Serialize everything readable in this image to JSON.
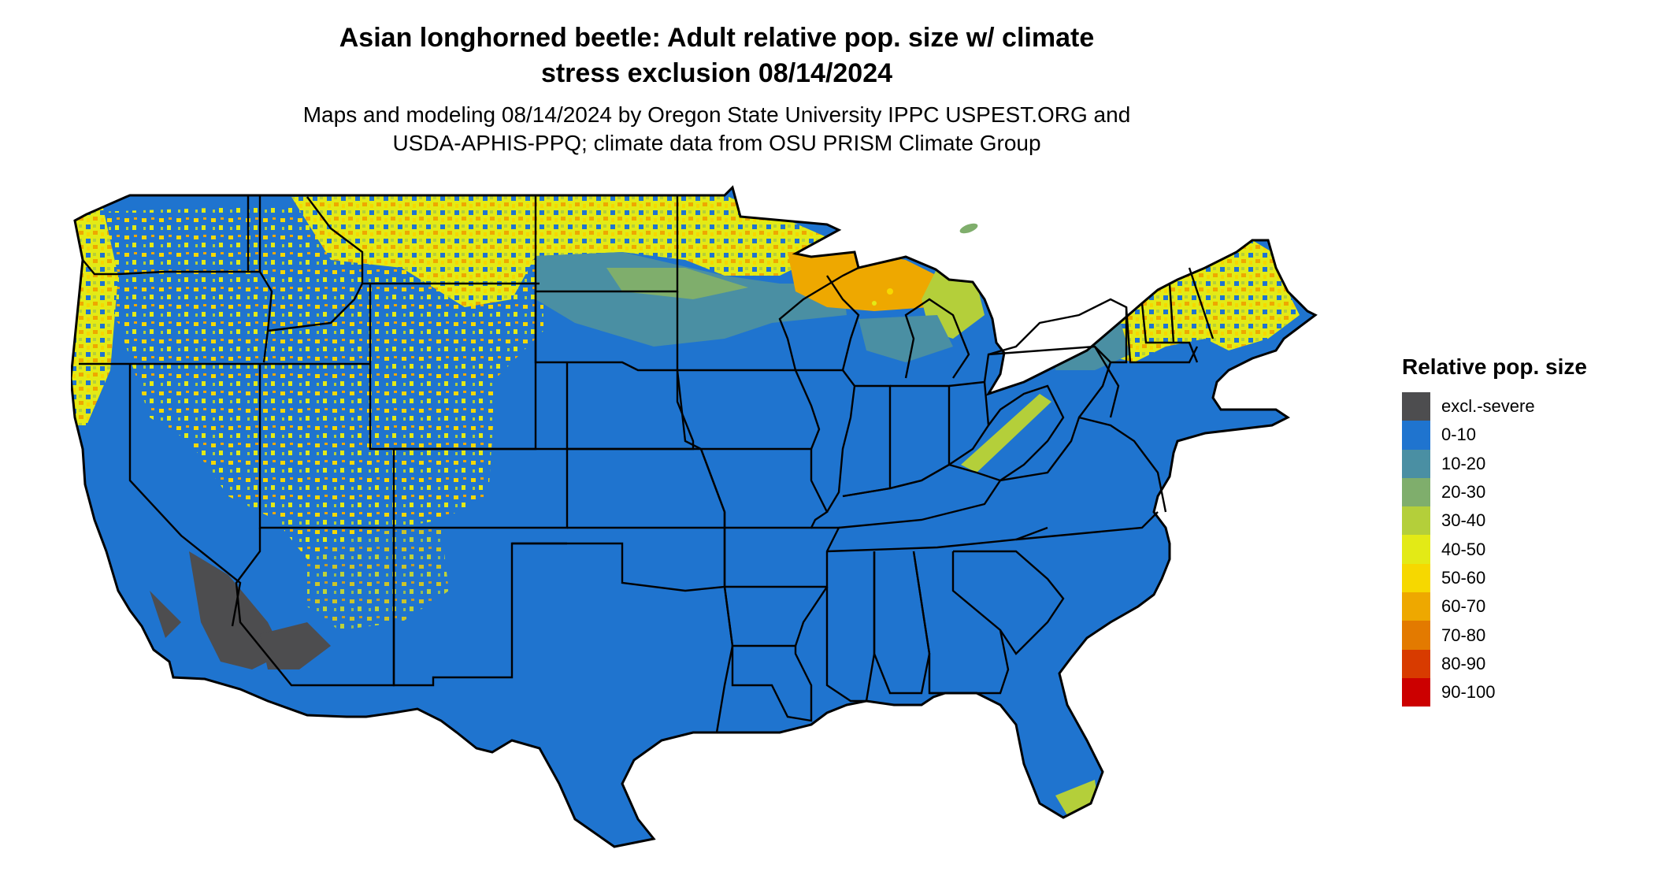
{
  "header": {
    "title_line1": "Asian longhorned beetle: Adult relative pop. size w/ climate",
    "title_line2": "stress exclusion 08/14/2024",
    "subtitle_line1": "Maps and modeling 08/14/2024 by Oregon State University IPPC USPEST.ORG and",
    "subtitle_line2": "USDA-APHIS-PPQ; climate data from OSU PRISM Climate Group"
  },
  "legend": {
    "title": "Relative pop. size",
    "items": [
      {
        "label": "excl.-severe",
        "color": "#4d4d4f"
      },
      {
        "label": "0-10",
        "color": "#1f74cf"
      },
      {
        "label": "10-20",
        "color": "#4a8fa3"
      },
      {
        "label": "20-30",
        "color": "#7fae6c"
      },
      {
        "label": "30-40",
        "color": "#b4cf3a"
      },
      {
        "label": "40-50",
        "color": "#e3ea16"
      },
      {
        "label": "50-60",
        "color": "#f6d800"
      },
      {
        "label": "60-70",
        "color": "#eea800"
      },
      {
        "label": "70-80",
        "color": "#e37a00"
      },
      {
        "label": "80-90",
        "color": "#d83b00"
      },
      {
        "label": "90-100",
        "color": "#cc0000"
      }
    ]
  }
}
